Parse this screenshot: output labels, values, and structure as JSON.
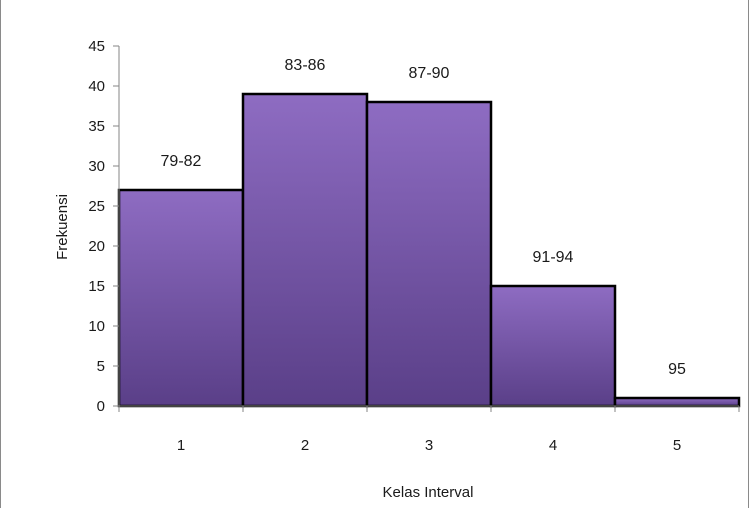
{
  "chart_data": {
    "type": "bar",
    "title": "",
    "xlabel": "Kelas Interval",
    "ylabel": "Frekuensi",
    "categories": [
      "1",
      "2",
      "3",
      "4",
      "5"
    ],
    "values": [
      27,
      39,
      38,
      15,
      1
    ],
    "data_labels": [
      "79-82",
      "83-86",
      "87-90",
      "91-94",
      "95"
    ],
    "yticks": [
      "0",
      "5",
      "10",
      "15",
      "20",
      "25",
      "30",
      "35",
      "40",
      "45"
    ],
    "ylim": [
      0,
      45
    ],
    "grid": false,
    "legend": "none",
    "bar_gap": 0,
    "colors": {
      "bar_top": "#8e6cc2",
      "bar_bottom": "#5a3f88",
      "bar_outline": "#000000",
      "axis": "#868686"
    }
  }
}
